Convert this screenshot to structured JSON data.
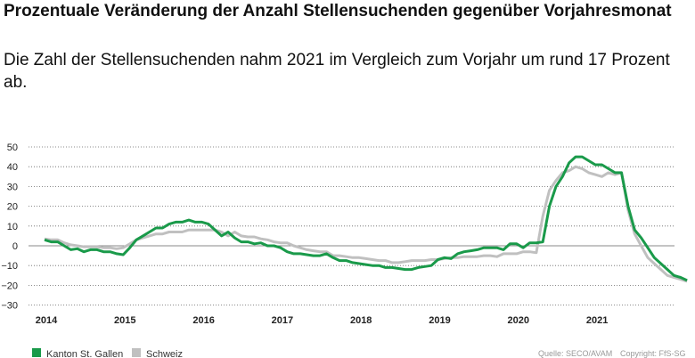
{
  "chart_data": {
    "type": "line",
    "title": "Prozentuale Veränderung der Anzahl Stellensuchenden gegenüber Vorjahresmonat",
    "subtitle": "Die Zahl der Stellensuchenden nahm 2021 im Vergleich zum Vorjahr um rund 17 Prozent ab.",
    "xlabel": "",
    "ylabel": "",
    "ylim": [
      -30,
      50
    ],
    "yticks": [
      "50",
      "40",
      "30",
      "20",
      "10",
      "0",
      "−10",
      "−20",
      "−30"
    ],
    "ytick_values": [
      50,
      40,
      30,
      20,
      10,
      0,
      -10,
      -20,
      -30
    ],
    "xticks": [
      "2014",
      "2015",
      "2016",
      "2017",
      "2018",
      "2019",
      "2020",
      "2021"
    ],
    "x_start": "2014-01",
    "x_frequency": "monthly",
    "grid": true,
    "legend_position": "bottom-left",
    "source": "Quelle: SECO/AVAM",
    "copyright": "Copyright: FfS-SG",
    "series": [
      {
        "name": "Kanton St. Gallen",
        "color": "#1a9a4a",
        "values": [
          3,
          2,
          2,
          0,
          -2,
          -1.5,
          -3,
          -2,
          -2,
          -3,
          -3,
          -4,
          -4.5,
          -1,
          3,
          5,
          7,
          9,
          9,
          11,
          12,
          12,
          13,
          12,
          12,
          11,
          8,
          5,
          7,
          4,
          2,
          2,
          1,
          1.5,
          0,
          0,
          -1,
          -3,
          -4,
          -4,
          -4.5,
          -5,
          -5,
          -4,
          -6,
          -7.5,
          -7.5,
          -8.5,
          -9,
          -9.5,
          -10,
          -10,
          -11,
          -11,
          -11.5,
          -12,
          -12,
          -11,
          -10.5,
          -10,
          -7,
          -6,
          -6.5,
          -4,
          -3,
          -2.5,
          -2,
          -1,
          -1,
          -1,
          -2,
          1,
          1,
          -1,
          1.5,
          1.5,
          2,
          20,
          30,
          35,
          42,
          45,
          45,
          43,
          41,
          41,
          39,
          37,
          37,
          20,
          8,
          4,
          -1,
          -6,
          -9,
          -12,
          -15,
          -16,
          -17.5
        ]
      },
      {
        "name": "Schweiz",
        "color": "#c0c0c0",
        "values": [
          3.5,
          3,
          3,
          1.5,
          0.5,
          0,
          -0.5,
          -0.5,
          -0.5,
          -1,
          -1,
          -1.5,
          -1,
          1,
          3,
          4,
          5,
          6,
          6,
          7,
          7,
          7,
          8,
          8,
          8,
          8,
          8,
          7,
          5,
          7,
          5,
          4.5,
          4.5,
          3.5,
          3,
          2,
          1.5,
          1.5,
          0,
          -1,
          -2,
          -2.5,
          -3,
          -3,
          -5,
          -5,
          -5.5,
          -6,
          -6,
          -6.5,
          -7,
          -7.5,
          -7.5,
          -8.5,
          -8.5,
          -8,
          -7.5,
          -7.5,
          -7.5,
          -7,
          -7,
          -6.5,
          -6,
          -6,
          -5.5,
          -5.5,
          -5.5,
          -5,
          -5,
          -5.5,
          -4,
          -4,
          -4,
          -3,
          -3,
          -3.5,
          15,
          28,
          33,
          37,
          38,
          40,
          39,
          37,
          36,
          35,
          37,
          36,
          37,
          18,
          6,
          0,
          -6,
          -9,
          -12,
          -15,
          -16,
          -17,
          -18
        ]
      }
    ]
  }
}
